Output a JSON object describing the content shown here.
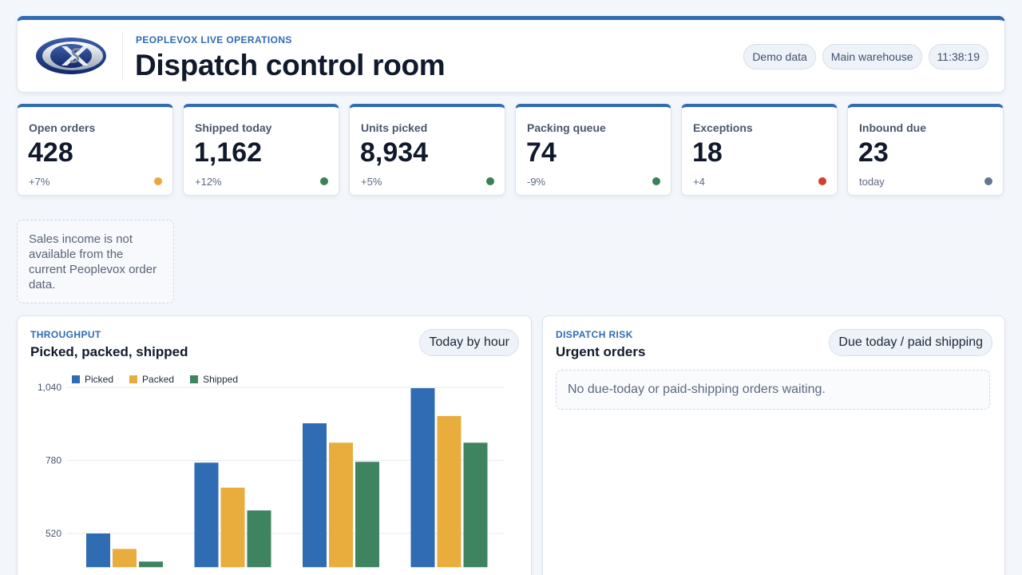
{
  "header": {
    "eyebrow": "PEOPLEVOX LIVE OPERATIONS",
    "title": "Dispatch control room",
    "pills": [
      "Demo data",
      "Main warehouse",
      "11:38:19"
    ]
  },
  "kpis": [
    {
      "label": "Open orders",
      "value": "428",
      "delta": "+7%",
      "dot_color": "#e9a83a"
    },
    {
      "label": "Shipped today",
      "value": "1,162",
      "delta": "+12%",
      "dot_color": "#3b8058"
    },
    {
      "label": "Units picked",
      "value": "8,934",
      "delta": "+5%",
      "dot_color": "#3b8058"
    },
    {
      "label": "Packing queue",
      "value": "74",
      "delta": "-9%",
      "dot_color": "#3b8058"
    },
    {
      "label": "Exceptions",
      "value": "18",
      "delta": "+4",
      "dot_color": "#d23f2f"
    },
    {
      "label": "Inbound due",
      "value": "23",
      "delta": "today",
      "dot_color": "#687590"
    }
  ],
  "note": "Sales income is not available from the current Peoplevox order data.",
  "throughput": {
    "eyebrow": "THROUGHPUT",
    "title": "Picked, packed, shipped",
    "pill": "Today by hour"
  },
  "urgent": {
    "eyebrow": "DISPATCH RISK",
    "title": "Urgent orders",
    "pill": "Due today / paid shipping",
    "empty_text": "No due-today or paid-shipping orders waiting."
  },
  "chart_data": {
    "type": "bar",
    "categories": [
      "",
      "",
      "",
      ""
    ],
    "series": [
      {
        "name": "Picked",
        "color": "#2f6cb3",
        "values": [
          520,
          772,
          912,
          1037
        ]
      },
      {
        "name": "Packed",
        "color": "#e9ad3d",
        "values": [
          465,
          683,
          843,
          938
        ]
      },
      {
        "name": "Shipped",
        "color": "#3e8460",
        "values": [
          420,
          602,
          775,
          843
        ]
      }
    ],
    "yticks": [
      520,
      780,
      1040
    ],
    "ytick_labels": [
      "520",
      "780",
      "1,040"
    ],
    "ylim": [
      400,
      1040
    ],
    "grid": true,
    "legend": "top-left"
  }
}
